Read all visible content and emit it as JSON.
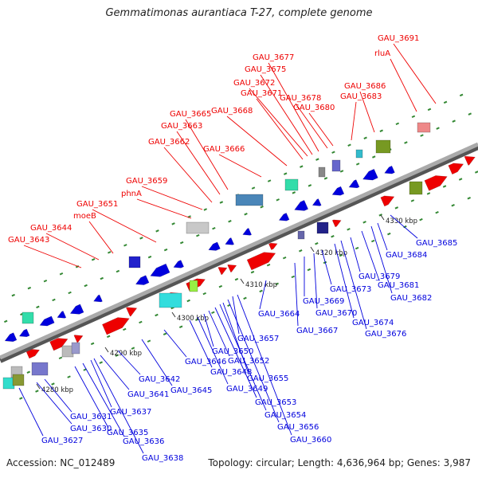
{
  "title": "Gemmatimonas aurantiaca T-27, complete genome",
  "footer": {
    "accession": "Accession: NC_012489",
    "summary": "Topology: circular; Length: 4,636,964 bp; Genes: 3,987"
  },
  "colors": {
    "forward": "#ee0000",
    "reverse": "#0000dd",
    "backbone": "#999999",
    "tick_marks": "#338833"
  },
  "scale_labels": [
    "4280 kbp",
    "4290 kbp",
    "4300 kbp",
    "4310 kbp",
    "4320 kbp",
    "4330 kbp"
  ],
  "forward_labels": [
    "GAU_3643",
    "GAU_3644",
    "moeB",
    "GAU_3651",
    "phnA",
    "GAU_3659",
    "GAU_3662",
    "GAU_3663",
    "GAU_3665",
    "GAU_3666",
    "GAU_3668",
    "GAU_3671",
    "GAU_3672",
    "GAU_3675",
    "GAU_3677",
    "GAU_3678",
    "GAU_3680",
    "GAU_3683",
    "GAU_3686",
    "rluA",
    "GAU_3691"
  ],
  "reverse_labels": [
    "GAU_3627",
    "GAU_3630",
    "GAU_3631",
    "GAU_3635",
    "GAU_3636",
    "GAU_3637",
    "GAU_3638",
    "GAU_3641",
    "GAU_3642",
    "GAU_3645",
    "GAU_3646",
    "GAU_3648",
    "GAU_3649",
    "GAU_3650",
    "GAU_3652",
    "GAU_3653",
    "GAU_3654",
    "GAU_3655",
    "GAU_3656",
    "GAU_3657",
    "GAU_3660",
    "GAU_3664",
    "GAU_3667",
    "GAU_3669",
    "GAU_3670",
    "GAU_3673",
    "GAU_3674",
    "GAU_3676",
    "GAU_3679",
    "GAU_3681",
    "GAU_3682",
    "GAU_3684",
    "GAU_3685"
  ]
}
